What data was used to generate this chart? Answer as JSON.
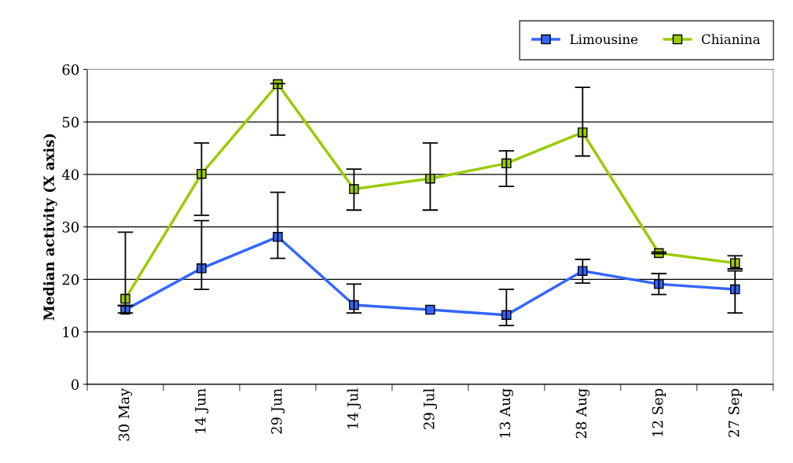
{
  "chart_data": {
    "type": "line",
    "ylabel": "Median activity (X axis)",
    "categories": [
      "30 May",
      "14 Jun",
      "29 Jun",
      "14 Jul",
      "29 Jul",
      "13 Aug",
      "28 Aug",
      "12 Sep",
      "27 Sep"
    ],
    "series": [
      {
        "name": "Limousine",
        "color": "#3366ff",
        "values": [
          14.2,
          22.1,
          28.1,
          15.1,
          14.2,
          13.2,
          21.6,
          19.1,
          18.1
        ],
        "errors": [
          [
            13.6,
            15
          ],
          [
            18.1,
            31.2
          ],
          [
            24,
            36.6
          ],
          [
            13.6,
            19.1
          ],
          null,
          [
            11.2,
            18.1
          ],
          [
            19.3,
            23.8
          ],
          [
            17.1,
            21.1
          ],
          [
            13.6,
            21.6
          ]
        ]
      },
      {
        "name": "Chianina",
        "color": "#99cc00",
        "values": [
          16.3,
          40.1,
          57.2,
          37.2,
          39.2,
          42.1,
          48,
          25,
          23.1
        ],
        "errors": [
          [
            15,
            29
          ],
          [
            32.2,
            46
          ],
          [
            47.5,
            57.3
          ],
          [
            33.2,
            41
          ],
          [
            33.2,
            46
          ],
          [
            37.7,
            44.5
          ],
          [
            43.5,
            56.6
          ],
          [
            24.9,
            25.2
          ],
          [
            22,
            24.5
          ]
        ]
      }
    ],
    "ylim": [
      0,
      60
    ],
    "yticks": [
      0,
      10,
      20,
      30,
      40,
      50,
      60
    ],
    "grid": "y",
    "legend": "top right",
    "marker": "square",
    "line_style": "solid"
  }
}
